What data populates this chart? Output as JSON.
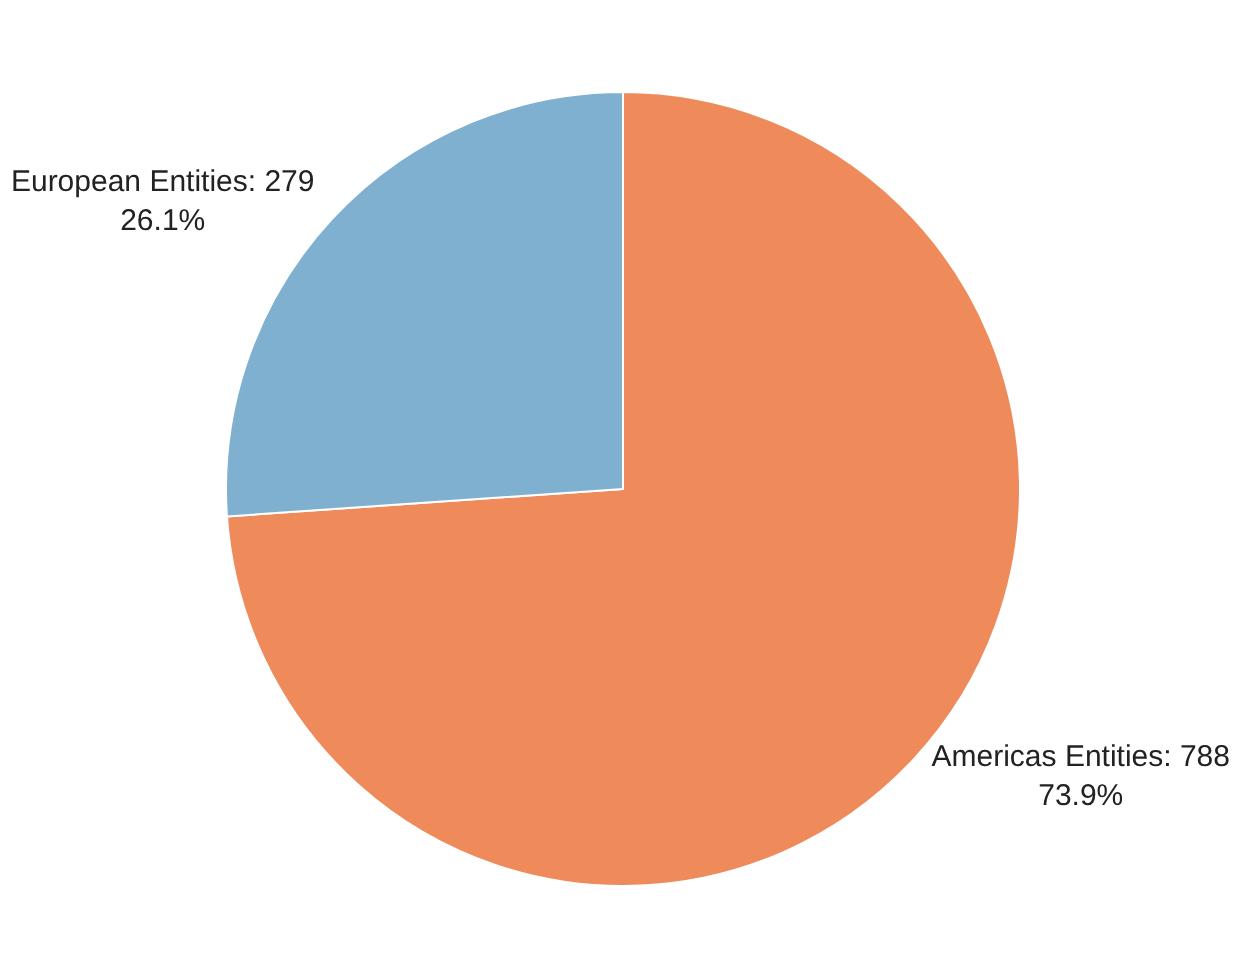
{
  "chart_data": {
    "type": "pie",
    "categories": [
      "Americas Entities: 788",
      "European Entities: 279"
    ],
    "values": [
      73.9,
      26.1
    ],
    "value_labels": [
      "73.9%",
      "26.1%"
    ],
    "colors": [
      "#ef8a5a",
      "#7fb0cf"
    ],
    "legend": false
  }
}
